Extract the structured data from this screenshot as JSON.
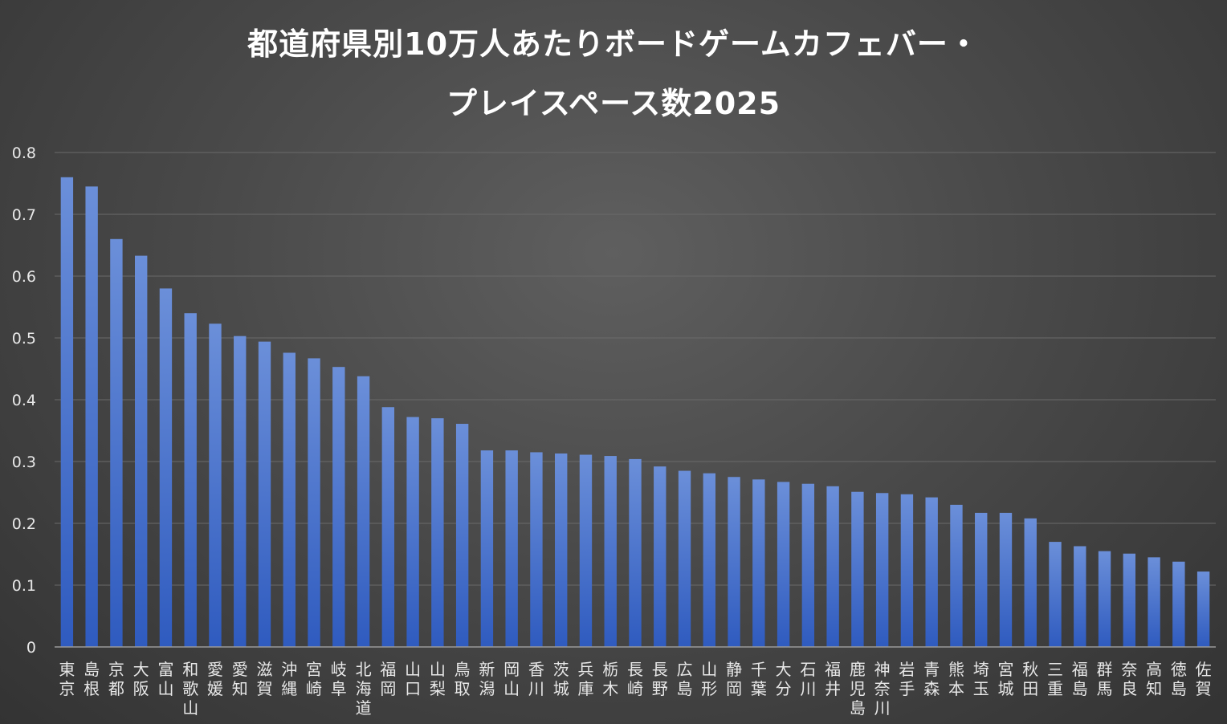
{
  "chart_data": {
    "type": "bar",
    "title_lines": [
      "都道府県別10万人あたりボードゲームカフェバー・",
      "プレイスペース数2025"
    ],
    "xlabel": "",
    "ylabel": "",
    "ylim": [
      0,
      0.8
    ],
    "yticks": [
      "0",
      "0.1",
      "0.2",
      "0.3",
      "0.4",
      "0.5",
      "0.6",
      "0.7",
      "0.8"
    ],
    "grid": true,
    "legend": "none",
    "bar_color_top": "#6b8fd9",
    "bar_color_bottom": "#2f5bbf",
    "categories": [
      "東京",
      "島根",
      "京都",
      "大阪",
      "富山",
      "和歌山",
      "愛媛",
      "愛知",
      "滋賀",
      "沖縄",
      "宮崎",
      "岐阜",
      "北海道",
      "福岡",
      "山口",
      "山梨",
      "鳥取",
      "新潟",
      "岡山",
      "香川",
      "茨城",
      "兵庫",
      "栃木",
      "長崎",
      "長野",
      "広島",
      "山形",
      "静岡",
      "千葉",
      "大分",
      "石川",
      "福井",
      "鹿児島",
      "神奈川",
      "岩手",
      "青森",
      "熊本",
      "埼玉",
      "宮城",
      "秋田",
      "三重",
      "福島",
      "群馬",
      "奈良",
      "高知",
      "徳島",
      "佐賀"
    ],
    "values": [
      0.76,
      0.745,
      0.66,
      0.633,
      0.58,
      0.54,
      0.523,
      0.503,
      0.494,
      0.476,
      0.467,
      0.453,
      0.438,
      0.388,
      0.372,
      0.37,
      0.361,
      0.318,
      0.318,
      0.315,
      0.313,
      0.311,
      0.309,
      0.304,
      0.292,
      0.285,
      0.281,
      0.275,
      0.271,
      0.267,
      0.264,
      0.26,
      0.251,
      0.249,
      0.247,
      0.242,
      0.23,
      0.217,
      0.217,
      0.208,
      0.17,
      0.163,
      0.155,
      0.151,
      0.145,
      0.138,
      0.122
    ]
  }
}
